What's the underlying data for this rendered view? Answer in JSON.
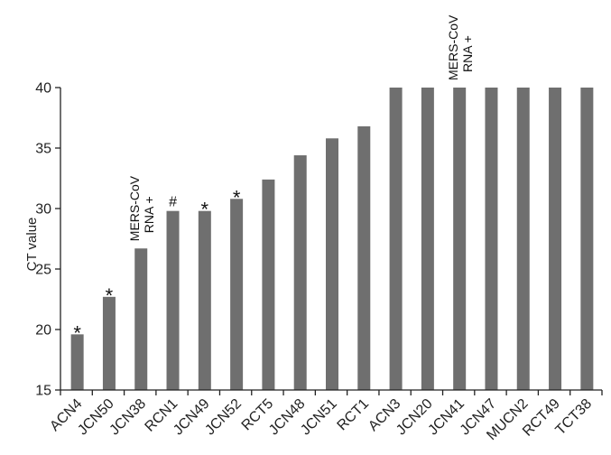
{
  "chart_data": {
    "type": "bar",
    "title": "",
    "xlabel": "",
    "ylabel": "CT value",
    "ylim": [
      15,
      40
    ],
    "yticks": [
      15,
      20,
      25,
      30,
      35,
      40
    ],
    "grid": false,
    "legend": "none",
    "bar_color": "#6f6f6f",
    "axis_color": "#222222",
    "categories": [
      "ACN4",
      "JCN50",
      "JCN38",
      "RCN1",
      "JCN49",
      "JCN52",
      "RCT5",
      "JCN48",
      "JCN51",
      "RCT1",
      "ACN3",
      "JCN20",
      "JCN41",
      "JCN47",
      "MUCN2",
      "RCT49",
      "TCT38"
    ],
    "values": [
      19.6,
      22.7,
      26.7,
      29.8,
      29.8,
      30.8,
      32.4,
      34.4,
      35.8,
      36.8,
      40,
      40,
      40,
      40,
      40,
      40,
      40
    ],
    "annotations": [
      {
        "category": "ACN4",
        "text": "*"
      },
      {
        "category": "JCN50",
        "text": "*"
      },
      {
        "category": "JCN38",
        "lines": [
          "MERS-CoV",
          "RNA +"
        ]
      },
      {
        "category": "RCN1",
        "text": "#"
      },
      {
        "category": "JCN49",
        "text": "*"
      },
      {
        "category": "JCN52",
        "text": "*"
      },
      {
        "category": "JCN41",
        "lines": [
          "MERS-CoV",
          "RNA +"
        ]
      }
    ]
  }
}
